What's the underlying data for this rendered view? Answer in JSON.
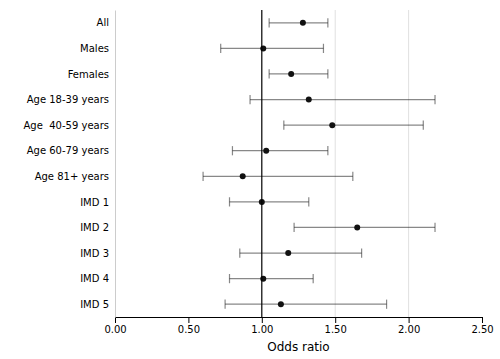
{
  "chart_data": {
    "type": "forest",
    "categories": [
      "All",
      "Males",
      "Females",
      "Age 18-39 years",
      "Age  40-59 years",
      "Age 60-79 years",
      "Age 81+ years",
      "IMD 1",
      "IMD 2",
      "IMD 3",
      "IMD 4",
      "IMD 5"
    ],
    "values": [
      1.28,
      1.01,
      1.2,
      1.32,
      1.48,
      1.03,
      0.87,
      1.0,
      1.65,
      1.18,
      1.01,
      1.13
    ],
    "ci_low": [
      1.05,
      0.72,
      1.05,
      0.92,
      1.15,
      0.8,
      0.6,
      0.78,
      1.22,
      0.85,
      0.78,
      0.75
    ],
    "ci_high": [
      1.45,
      1.42,
      1.45,
      2.18,
      2.1,
      1.45,
      1.62,
      1.32,
      2.18,
      1.68,
      1.35,
      1.85
    ],
    "xlabel": "Odds ratio",
    "xlim": [
      0.0,
      2.5
    ],
    "xticks": [
      {
        "value": 0.0,
        "label": "0.00"
      },
      {
        "value": 0.5,
        "label": "0.50"
      },
      {
        "value": 1.0,
        "label": "1.00"
      },
      {
        "value": 1.5,
        "label": "1.50"
      },
      {
        "value": 2.0,
        "label": "2.00"
      },
      {
        "value": 2.5,
        "label": "2.50"
      }
    ],
    "reference_line": 1.0,
    "grid_lines": [
      1.5,
      2.0
    ],
    "color": "#111111"
  }
}
